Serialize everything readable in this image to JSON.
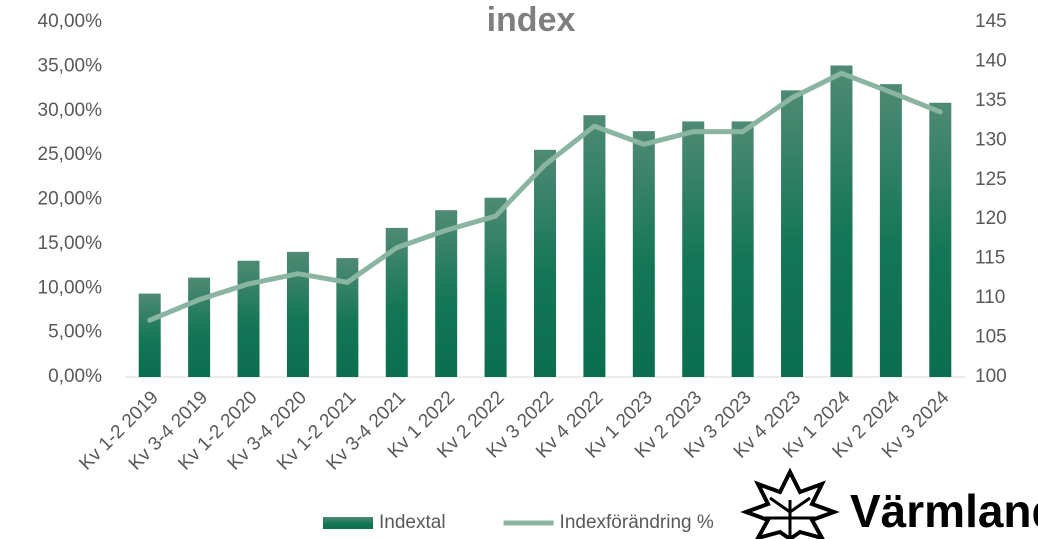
{
  "chart_data": {
    "type": "combo",
    "title": "index",
    "categories": [
      "Kv 1-2 2019",
      "Kv 3-4 2019",
      "Kv 1-2 2020",
      "Kv 3-4 2020",
      "Kv 1-2 2021",
      "Kv 3-4 2021",
      "Kv 1 2022",
      "Kv 2 2022",
      "Kv 3 2022",
      "Kv 4 2022",
      "Kv 1 2023",
      "Kv 2 2023",
      "Kv 3 2023",
      "Kv 4 2023",
      "Kv 1 2024",
      "Kv 2 2024",
      "Kv 3 2024"
    ],
    "series": [
      {
        "name": "Indextal",
        "type": "bar",
        "color": "#0b6e4f",
        "values": [
          9.4,
          11.2,
          13.1,
          14.1,
          13.4,
          16.8,
          18.8,
          20.2,
          25.6,
          29.5,
          27.7,
          28.8,
          28.8,
          32.3,
          35.1,
          33.0,
          30.9
        ]
      },
      {
        "name": "Indexförändring %",
        "type": "line",
        "axis": "y2",
        "color": "#8ab5a3",
        "values": [
          107.2,
          109.8,
          111.8,
          113.1,
          112.0,
          116.4,
          118.6,
          120.4,
          126.9,
          131.8,
          129.5,
          131.1,
          131.1,
          135.4,
          138.5,
          136.1,
          133.6
        ]
      }
    ],
    "ylim": [
      0,
      40
    ],
    "yticks": [
      {
        "value": 0,
        "label": "0,00%"
      },
      {
        "value": 5,
        "label": "5,00%"
      },
      {
        "value": 10,
        "label": "10,00%"
      },
      {
        "value": 15,
        "label": "15,00%"
      },
      {
        "value": 20,
        "label": "20,00%"
      },
      {
        "value": 25,
        "label": "25,00%"
      },
      {
        "value": 30,
        "label": "30,00%"
      },
      {
        "value": 35,
        "label": "35,00%"
      },
      {
        "value": 40,
        "label": "40,00%"
      }
    ],
    "y2lim": [
      100,
      145
    ],
    "y2ticks": [
      100,
      105,
      110,
      115,
      120,
      125,
      130,
      135,
      140,
      145
    ],
    "legend": "bottom"
  },
  "logo_text": "Värmland"
}
